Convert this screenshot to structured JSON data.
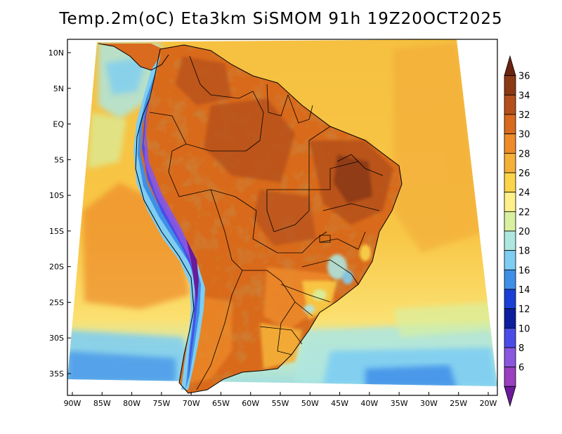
{
  "title": "Temp.2m(oC) Eta3km SiSMOM 91h 19Z20OCT2025",
  "lat_labels": [
    "10N",
    "5N",
    "EQ",
    "5S",
    "10S",
    "15S",
    "20S",
    "25S",
    "30S",
    "35S"
  ],
  "lat_values": [
    10,
    5,
    0,
    -5,
    -10,
    -15,
    -20,
    -25,
    -30,
    -35
  ],
  "lon_labels": [
    "90W",
    "85W",
    "80W",
    "75W",
    "70W",
    "65W",
    "60W",
    "55W",
    "50W",
    "45W",
    "40W",
    "35W",
    "30W",
    "25W",
    "20W"
  ],
  "lon_values": [
    -90,
    -85,
    -80,
    -75,
    -70,
    -65,
    -60,
    -55,
    -50,
    -45,
    -40,
    -35,
    -30,
    -25,
    -20
  ],
  "colorbar": {
    "labels": [
      "36",
      "34",
      "32",
      "30",
      "28",
      "26",
      "24",
      "22",
      "20",
      "18",
      "16",
      "14",
      "12",
      "10",
      "8",
      "6"
    ],
    "colors": [
      "#6b2410",
      "#8c3a14",
      "#b5501a",
      "#d96a1e",
      "#ee8c2a",
      "#f5b038",
      "#fbd44a",
      "#fff08a",
      "#d8f0a0",
      "#aee6e0",
      "#7ecdf2",
      "#3f8fe8",
      "#1a3fd6",
      "#0d1e9e",
      "#4b4ce8",
      "#8a58e0",
      "#9a40c0",
      "#6a1a9a"
    ]
  }
}
